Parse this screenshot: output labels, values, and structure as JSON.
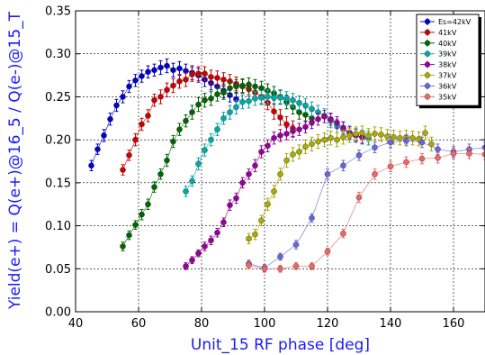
{
  "chart_data": {
    "type": "scatter",
    "xlabel": "Unit_15 RF phase [deg]",
    "ylabel": "Yield(e+) = Q(e+)@16_5 / Q(e-)@15_T",
    "xlim": [
      40,
      170
    ],
    "ylim": [
      0.0,
      0.35
    ],
    "x_ticks": [
      40,
      60,
      80,
      100,
      120,
      140,
      160
    ],
    "y_ticks": [
      0.0,
      0.05,
      0.1,
      0.15,
      0.2,
      0.25,
      0.3,
      0.35
    ],
    "x_tick_labels": [
      "40",
      "60",
      "80",
      "100",
      "120",
      "140",
      "160"
    ],
    "y_tick_labels": [
      "0.00",
      "0.05",
      "0.10",
      "0.15",
      "0.20",
      "0.25",
      "0.30",
      "0.35"
    ],
    "grid": true,
    "legend_position": "top-right",
    "label_color": "#1a1aff",
    "series": [
      {
        "name": "Es=42kV",
        "color": "#0000cc",
        "x": [
          45,
          47,
          49,
          51,
          53,
          55,
          57,
          59,
          61,
          63,
          65,
          67,
          69,
          71,
          73,
          75,
          77,
          79,
          81,
          83,
          85,
          87,
          89,
          91
        ],
        "y": [
          0.17,
          0.189,
          0.205,
          0.224,
          0.24,
          0.25,
          0.262,
          0.269,
          0.274,
          0.279,
          0.281,
          0.284,
          0.286,
          0.281,
          0.283,
          0.28,
          0.278,
          0.275,
          0.27,
          0.266,
          0.262,
          0.257,
          0.252,
          0.247
        ],
        "err": [
          0.006,
          0.006,
          0.007,
          0.007,
          0.007,
          0.007,
          0.007,
          0.007,
          0.007,
          0.007,
          0.007,
          0.008,
          0.008,
          0.008,
          0.008,
          0.008,
          0.008,
          0.008,
          0.008,
          0.008,
          0.008,
          0.008,
          0.008,
          0.008
        ]
      },
      {
        "name": "41kV",
        "color": "#cc0000",
        "x": [
          55,
          57,
          59,
          61,
          63,
          65,
          67,
          69,
          71,
          73,
          75,
          77,
          79,
          81,
          83,
          85,
          87,
          89,
          91,
          93,
          95,
          97,
          99,
          101,
          103,
          105,
          107,
          109
        ],
        "y": [
          0.165,
          0.182,
          0.2,
          0.218,
          0.228,
          0.246,
          0.25,
          0.258,
          0.263,
          0.268,
          0.27,
          0.276,
          0.277,
          0.277,
          0.273,
          0.272,
          0.27,
          0.268,
          0.265,
          0.262,
          0.259,
          0.255,
          0.25,
          0.243,
          0.233,
          0.226,
          0.218,
          0.213
        ],
        "err": [
          0.006,
          0.006,
          0.007,
          0.007,
          0.007,
          0.007,
          0.008,
          0.008,
          0.008,
          0.008,
          0.008,
          0.008,
          0.008,
          0.008,
          0.008,
          0.008,
          0.008,
          0.008,
          0.008,
          0.008,
          0.008,
          0.008,
          0.008,
          0.008,
          0.009,
          0.009,
          0.009,
          0.009
        ]
      },
      {
        "name": "40kV",
        "color": "#006600",
        "x": [
          55,
          57,
          59,
          61,
          63,
          65,
          67,
          69,
          71,
          73,
          75,
          77,
          79,
          81,
          83,
          85,
          87,
          89,
          91,
          93,
          95,
          97,
          99,
          101,
          103,
          105,
          107,
          109,
          111,
          113,
          115
        ],
        "y": [
          0.076,
          0.089,
          0.101,
          0.113,
          0.125,
          0.145,
          0.16,
          0.176,
          0.198,
          0.212,
          0.222,
          0.232,
          0.241,
          0.246,
          0.248,
          0.253,
          0.255,
          0.26,
          0.262,
          0.263,
          0.264,
          0.262,
          0.26,
          0.257,
          0.254,
          0.25,
          0.244,
          0.238,
          0.232,
          0.229,
          0.225
        ],
        "err": [
          0.005,
          0.005,
          0.005,
          0.006,
          0.006,
          0.006,
          0.006,
          0.007,
          0.007,
          0.007,
          0.007,
          0.008,
          0.008,
          0.008,
          0.008,
          0.008,
          0.008,
          0.008,
          0.008,
          0.008,
          0.008,
          0.008,
          0.008,
          0.008,
          0.008,
          0.008,
          0.008,
          0.008,
          0.008,
          0.008,
          0.008
        ]
      },
      {
        "name": "39kV",
        "color": "#00aaaa",
        "x": [
          75,
          77,
          79,
          81,
          83,
          85,
          87,
          89,
          91,
          93,
          95,
          97,
          99,
          101,
          103,
          105,
          107,
          109,
          111,
          113,
          115,
          117,
          119,
          121,
          123,
          125,
          127,
          129,
          131,
          133
        ],
        "y": [
          0.14,
          0.152,
          0.172,
          0.188,
          0.2,
          0.212,
          0.225,
          0.232,
          0.238,
          0.244,
          0.245,
          0.248,
          0.249,
          0.25,
          0.249,
          0.249,
          0.248,
          0.246,
          0.243,
          0.24,
          0.236,
          0.232,
          0.228,
          0.222,
          0.216,
          0.212,
          0.208,
          0.205,
          0.203,
          0.202
        ],
        "err": [
          0.006,
          0.006,
          0.007,
          0.007,
          0.007,
          0.007,
          0.007,
          0.008,
          0.008,
          0.008,
          0.008,
          0.008,
          0.008,
          0.008,
          0.008,
          0.008,
          0.008,
          0.008,
          0.008,
          0.008,
          0.008,
          0.008,
          0.008,
          0.008,
          0.008,
          0.008,
          0.008,
          0.008,
          0.008,
          0.008
        ]
      },
      {
        "name": "38kV",
        "color": "#990099",
        "x": [
          75,
          77,
          79,
          81,
          83,
          85,
          87,
          89,
          91,
          93,
          95,
          97,
          99,
          101,
          103,
          105,
          107,
          109,
          111,
          113,
          115,
          117,
          119,
          121,
          123,
          125,
          127,
          129,
          131
        ],
        "y": [
          0.053,
          0.06,
          0.068,
          0.076,
          0.083,
          0.092,
          0.104,
          0.124,
          0.132,
          0.15,
          0.16,
          0.17,
          0.186,
          0.193,
          0.202,
          0.205,
          0.207,
          0.21,
          0.212,
          0.215,
          0.22,
          0.224,
          0.227,
          0.224,
          0.22,
          0.214,
          0.208,
          0.205,
          0.203
        ],
        "err": [
          0.004,
          0.004,
          0.004,
          0.005,
          0.005,
          0.005,
          0.005,
          0.006,
          0.006,
          0.006,
          0.006,
          0.007,
          0.007,
          0.007,
          0.007,
          0.007,
          0.007,
          0.007,
          0.007,
          0.007,
          0.007,
          0.007,
          0.007,
          0.007,
          0.007,
          0.007,
          0.007,
          0.007,
          0.007
        ]
      },
      {
        "name": "37kV",
        "color": "#aaaa00",
        "x": [
          95,
          97,
          99,
          101,
          103,
          105,
          107,
          109,
          111,
          113,
          115,
          117,
          119,
          121,
          123,
          125,
          127,
          129,
          131,
          133,
          135,
          137,
          139,
          141,
          143,
          145,
          147,
          149,
          151,
          153
        ],
        "y": [
          0.085,
          0.09,
          0.106,
          0.125,
          0.14,
          0.16,
          0.176,
          0.183,
          0.186,
          0.192,
          0.195,
          0.198,
          0.2,
          0.202,
          0.2,
          0.203,
          0.205,
          0.207,
          0.208,
          0.205,
          0.207,
          0.206,
          0.204,
          0.203,
          0.202,
          0.203,
          0.202,
          0.201,
          0.208,
          0.195
        ],
        "err": [
          0.006,
          0.006,
          0.006,
          0.007,
          0.007,
          0.007,
          0.008,
          0.008,
          0.008,
          0.008,
          0.008,
          0.008,
          0.008,
          0.008,
          0.008,
          0.008,
          0.008,
          0.008,
          0.008,
          0.008,
          0.008,
          0.008,
          0.008,
          0.008,
          0.008,
          0.008,
          0.008,
          0.008,
          0.008,
          0.008
        ]
      },
      {
        "name": "36kV",
        "color": "#6666dd",
        "x": [
          95,
          100,
          105,
          110,
          115,
          120,
          125,
          130,
          135,
          140,
          145,
          150,
          155,
          160,
          165,
          170
        ],
        "y": [
          0.056,
          0.051,
          0.064,
          0.078,
          0.109,
          0.16,
          0.17,
          0.182,
          0.191,
          0.197,
          0.199,
          0.197,
          0.189,
          0.186,
          0.189,
          0.191
        ],
        "err": [
          0.004,
          0.004,
          0.004,
          0.005,
          0.005,
          0.006,
          0.006,
          0.006,
          0.006,
          0.006,
          0.006,
          0.006,
          0.006,
          0.006,
          0.006,
          0.006
        ]
      },
      {
        "name": "35kV",
        "color": "#ee6666",
        "x": [
          95,
          100,
          105,
          110,
          115,
          120,
          125,
          130,
          135,
          140,
          145,
          150,
          155,
          160,
          165,
          170
        ],
        "y": [
          0.054,
          0.05,
          0.05,
          0.053,
          0.053,
          0.07,
          0.091,
          0.133,
          0.16,
          0.169,
          0.174,
          0.178,
          0.179,
          0.184,
          0.184,
          0.183
        ],
        "err": [
          0.004,
          0.004,
          0.004,
          0.004,
          0.004,
          0.004,
          0.005,
          0.006,
          0.006,
          0.006,
          0.006,
          0.006,
          0.006,
          0.006,
          0.006,
          0.006
        ]
      }
    ]
  }
}
